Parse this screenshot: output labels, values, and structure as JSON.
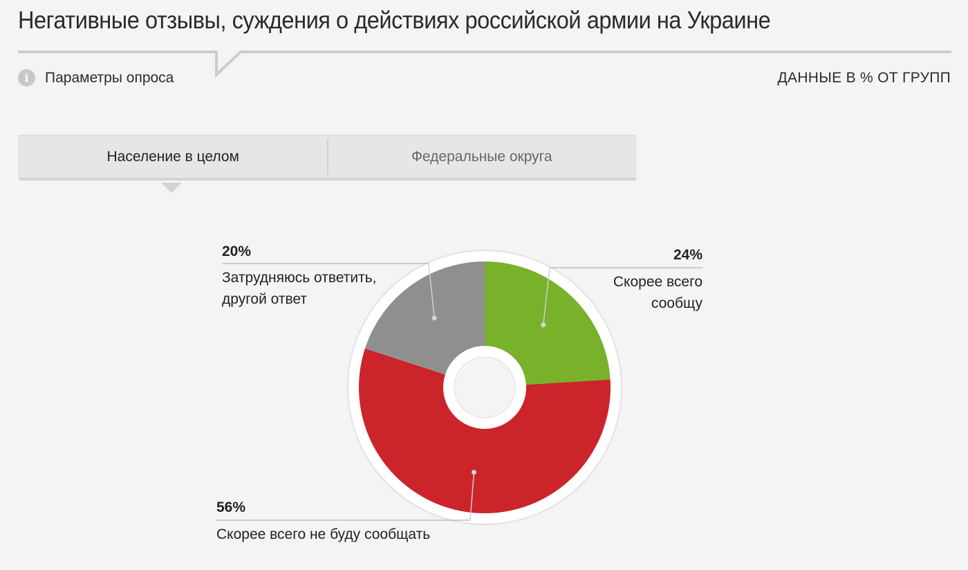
{
  "header": {
    "title": "Негативные отзывы, суждения о действиях российской армии на Украине",
    "params_label": "Параметры опроса",
    "units_note": "ДАННЫЕ В % ОТ ГРУПП"
  },
  "tabs": [
    {
      "label": "Население в целом",
      "active": true
    },
    {
      "label": "Федеральные округа",
      "active": false
    }
  ],
  "chart_data": {
    "type": "pie",
    "slices": [
      {
        "value": 24,
        "label_pct": "24%",
        "label_lines": [
          "Скорее всего",
          "сообщу"
        ],
        "color": "#79b12b"
      },
      {
        "value": 56,
        "label_pct": "56%",
        "label_lines": [
          "Скорее всего не буду сообщать"
        ],
        "color": "#cb242b"
      },
      {
        "value": 20,
        "label_pct": "20%",
        "label_lines": [
          "Затрудняюсь ответить,",
          "другой ответ"
        ],
        "color": "#8f8f8f"
      }
    ]
  }
}
